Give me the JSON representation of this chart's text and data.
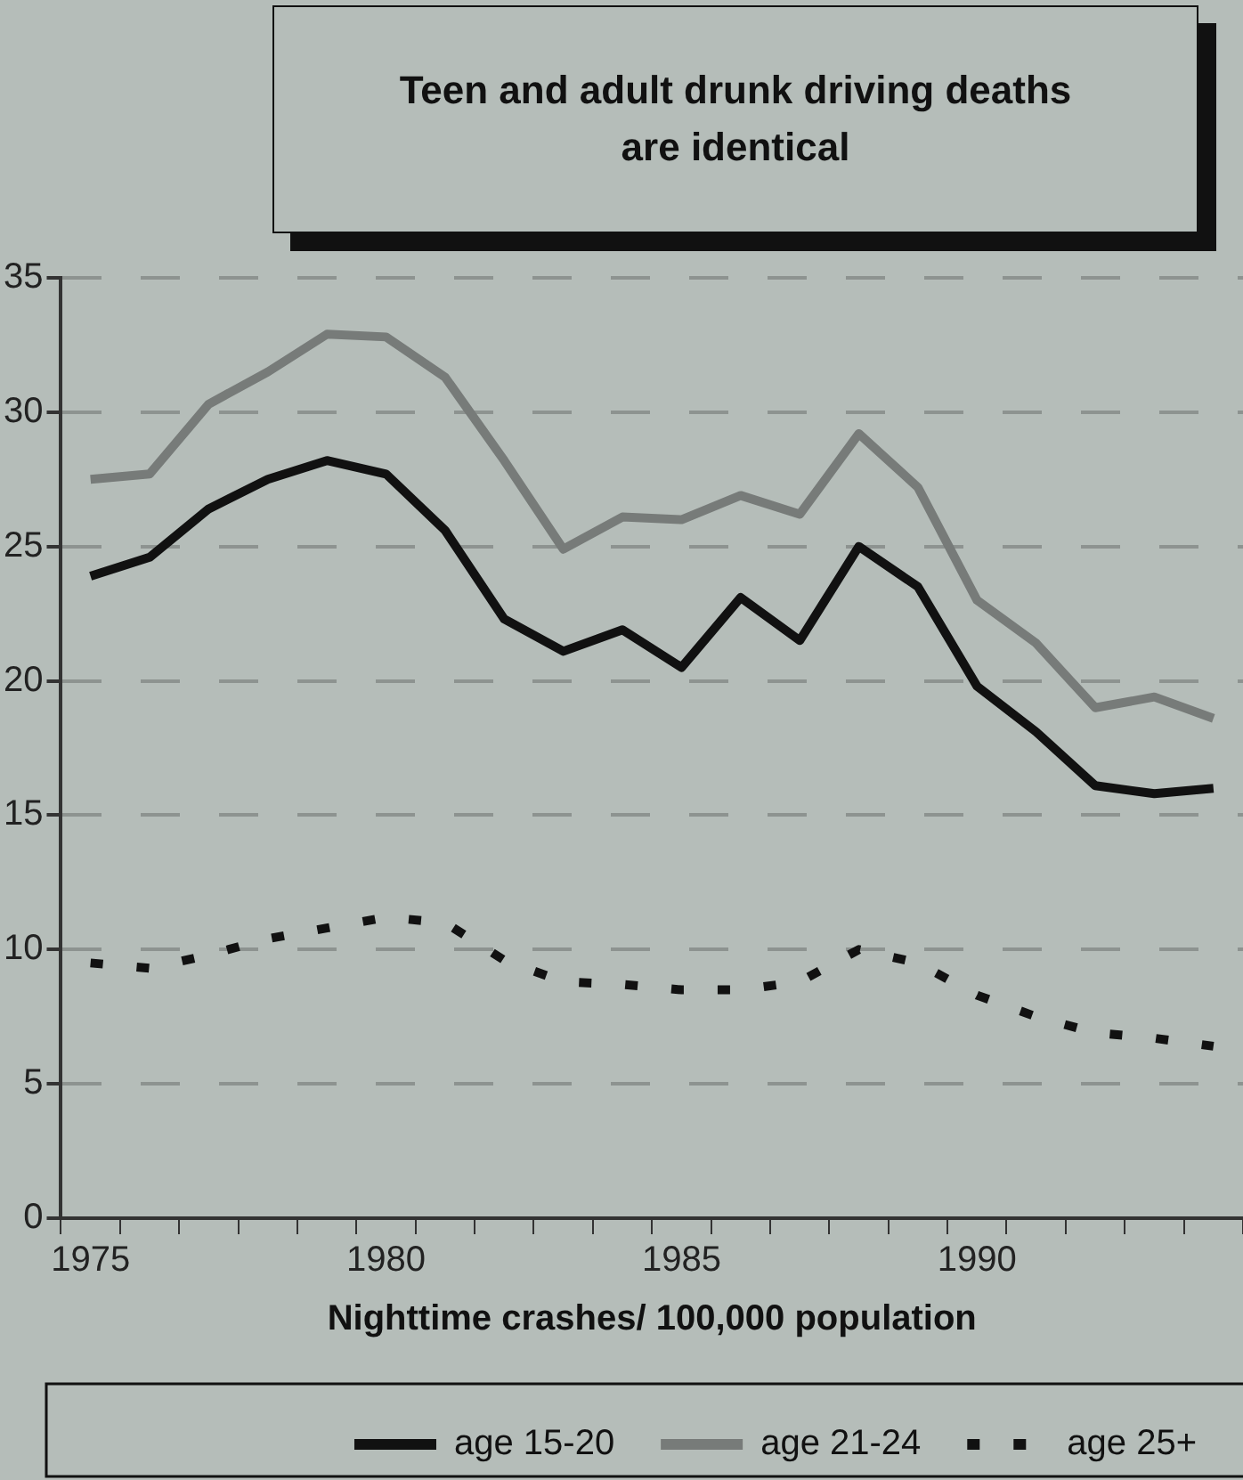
{
  "chart_data": {
    "type": "line",
    "title": "Teen and adult drunk driving deaths are identical",
    "xlabel": "Nighttime crashes/ 100,000 population",
    "categories": [
      "1975",
      null,
      null,
      null,
      null,
      "1980",
      null,
      null,
      null,
      null,
      "1985",
      null,
      null,
      null,
      null,
      "1990",
      null,
      null,
      null,
      null
    ],
    "series": [
      {
        "name": "age 15-20",
        "color": "#111111",
        "line_style": "solid",
        "values": [
          23.9,
          24.6,
          26.4,
          27.5,
          28.2,
          27.7,
          25.6,
          22.3,
          21.1,
          21.9,
          20.5,
          23.1,
          21.5,
          25.0,
          23.5,
          19.8,
          18.1,
          16.1,
          15.8,
          16.0
        ]
      },
      {
        "name": "age 21-24",
        "color": "#777b79",
        "line_style": "solid",
        "values": [
          27.5,
          27.7,
          30.3,
          31.5,
          32.9,
          32.8,
          31.3,
          28.2,
          24.9,
          26.1,
          26.0,
          26.9,
          26.2,
          29.2,
          27.2,
          23.0,
          21.4,
          19.0,
          19.4,
          18.6
        ]
      },
      {
        "name": "age 25+",
        "color": "#111111",
        "line_style": "dotted",
        "values": [
          9.5,
          9.3,
          9.8,
          10.4,
          10.8,
          11.2,
          11.0,
          9.6,
          8.8,
          8.7,
          8.5,
          8.5,
          8.8,
          10.0,
          9.5,
          8.3,
          7.5,
          6.9,
          6.7,
          6.4
        ]
      }
    ],
    "ylim": [
      0,
      35
    ],
    "yticks": [
      0,
      5,
      10,
      15,
      20,
      25,
      30,
      35
    ],
    "grid": "y",
    "legend": "bottom",
    "marker": "none"
  }
}
